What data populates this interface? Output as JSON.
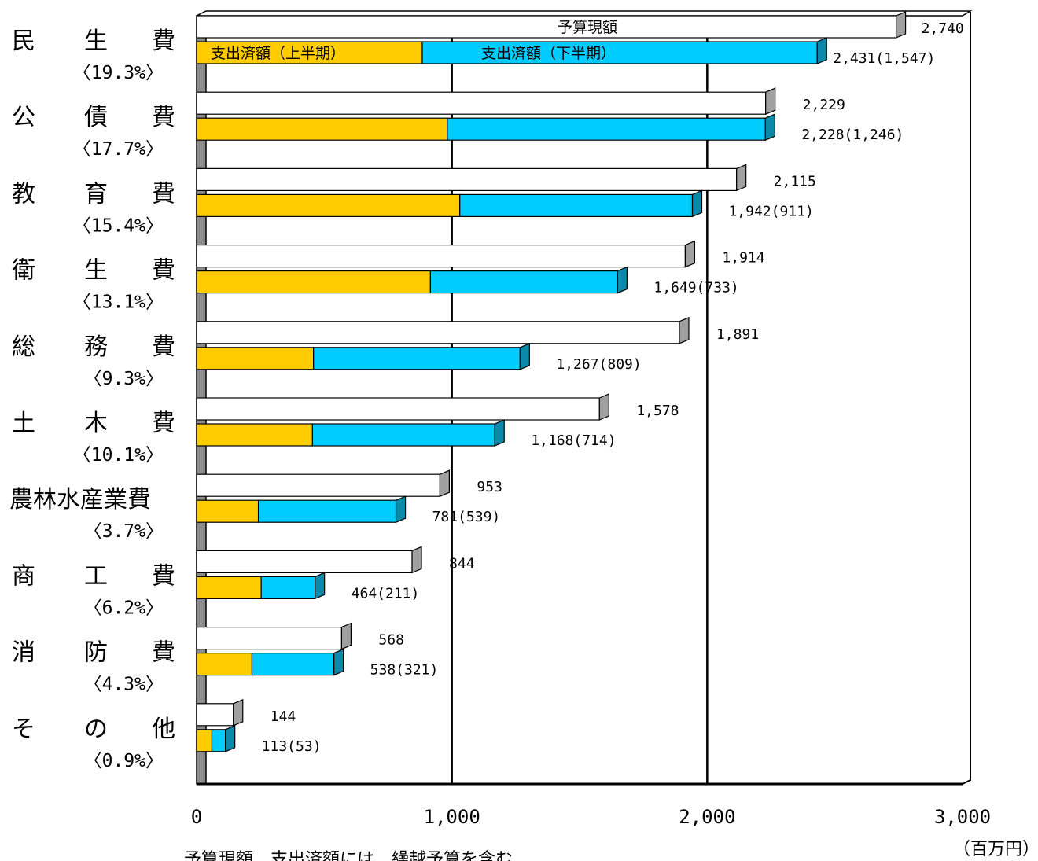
{
  "chart_data": {
    "type": "bar",
    "orientation": "horizontal",
    "unit": "（百万円）",
    "note": "予算現額、支出済額には、繰越予算を含む",
    "xlim": [
      0,
      3000
    ],
    "x_ticks": [
      "0",
      "1,000",
      "2,000",
      "3,000"
    ],
    "legend_labels": {
      "budget": "予算現額",
      "first_half": "支出済額（上半期）",
      "second_half": "支出済額（下半期）"
    },
    "colors": {
      "budget": "#ffffff",
      "first_half": "#ffcc00",
      "second_half": "#00ccff",
      "side_gray": "#a0a0a0",
      "side_teal": "#0a8aa8"
    },
    "categories": [
      {
        "label": "民生費",
        "share": "〈19.3%〉",
        "budget": 2740,
        "spent": 2431,
        "first_half": 884,
        "second_half": 1547,
        "budget_label": "2,740",
        "spent_label": "2,431(1,547)"
      },
      {
        "label": "公債費",
        "share": "〈17.7%〉",
        "budget": 2229,
        "spent": 2228,
        "first_half": 982,
        "second_half": 1246,
        "budget_label": "2,229",
        "spent_label": "2,228(1,246)"
      },
      {
        "label": "教育費",
        "share": "〈15.4%〉",
        "budget": 2115,
        "spent": 1942,
        "first_half": 1031,
        "second_half": 911,
        "budget_label": "2,115",
        "spent_label": "1,942(911)"
      },
      {
        "label": "衛生費",
        "share": "〈13.1%〉",
        "budget": 1914,
        "spent": 1649,
        "first_half": 916,
        "second_half": 733,
        "budget_label": "1,914",
        "spent_label": "1,649(733)"
      },
      {
        "label": "総務費",
        "share": "〈9.3%〉",
        "budget": 1891,
        "spent": 1267,
        "first_half": 458,
        "second_half": 809,
        "budget_label": "1,891",
        "spent_label": "1,267(809)"
      },
      {
        "label": "土木費",
        "share": "〈10.1%〉",
        "budget": 1578,
        "spent": 1168,
        "first_half": 454,
        "second_half": 714,
        "budget_label": "1,578",
        "spent_label": "1,168(714)"
      },
      {
        "label": "農林水産業費",
        "share": "〈3.7%〉",
        "budget": 953,
        "spent": 781,
        "first_half": 242,
        "second_half": 539,
        "budget_label": "953",
        "spent_label": "781(539)"
      },
      {
        "label": "商工費",
        "share": "〈6.2%〉",
        "budget": 844,
        "spent": 464,
        "first_half": 253,
        "second_half": 211,
        "budget_label": "844",
        "spent_label": "464(211)"
      },
      {
        "label": "消防費",
        "share": "〈4.3%〉",
        "budget": 568,
        "spent": 538,
        "first_half": 217,
        "second_half": 321,
        "budget_label": "568",
        "spent_label": "538(321)"
      },
      {
        "label": "その他",
        "share": "〈0.9%〉",
        "budget": 144,
        "spent": 113,
        "first_half": 60,
        "second_half": 53,
        "budget_label": "144",
        "spent_label": "113(53)"
      }
    ]
  }
}
